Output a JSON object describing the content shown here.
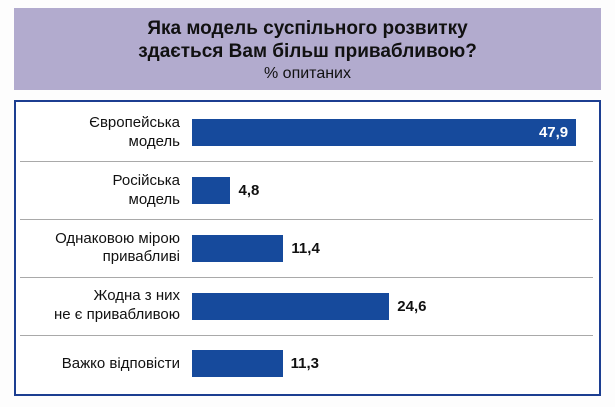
{
  "title": {
    "line1": "Яка модель суспільного розвитку",
    "line2": "здається Вам більш привабливою?",
    "subtitle": "% опитаних"
  },
  "chart_data": {
    "type": "bar",
    "orientation": "horizontal",
    "title": "Яка модель суспільного розвитку здається Вам більш привабливою?",
    "subtitle": "% опитаних",
    "categories": [
      "Європейська модель",
      "Російська модель",
      "Однаковою мірою привабливі",
      "Жодна з них не є привабливою",
      "Важко відповісти"
    ],
    "category_labels": [
      "Європейська\nмодель",
      "Російська\nмодель",
      "Однаковою мірою\nпривабливі",
      "Жодна з них\nне є привабливою",
      "Важко відповісти"
    ],
    "values": [
      47.9,
      4.8,
      11.4,
      24.6,
      11.3
    ],
    "value_labels": [
      "47,9",
      "4,8",
      "11,4",
      "24,6",
      "11,3"
    ],
    "xlim": [
      0,
      50
    ],
    "grid": "row-dividers",
    "legend": "none",
    "bar_color": "#164a9c",
    "title_bg": "#b2abce",
    "panel_border": "#1c3e91"
  }
}
